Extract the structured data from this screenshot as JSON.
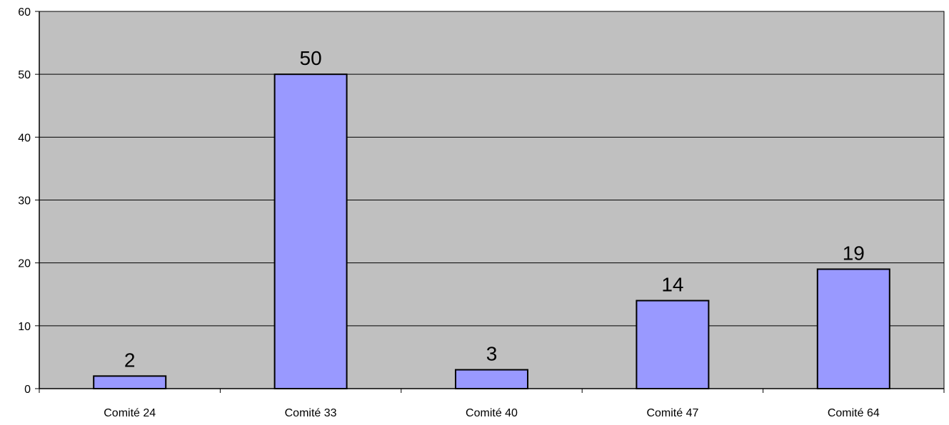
{
  "chart_data": {
    "type": "bar",
    "categories": [
      "Comité 24",
      "Comité 33",
      "Comité 40",
      "Comité 47",
      "Comité 64"
    ],
    "values": [
      2,
      50,
      3,
      14,
      19
    ],
    "data_labels": [
      "2",
      "50",
      "3",
      "14",
      "19"
    ],
    "title": "",
    "xlabel": "",
    "ylabel": "",
    "ylim": [
      0,
      60
    ],
    "yticks": [
      0,
      10,
      20,
      30,
      40,
      50,
      60
    ],
    "ytick_labels": [
      "0",
      "10",
      "20",
      "30",
      "40",
      "50",
      "60"
    ],
    "grid": true,
    "legend": "none",
    "colors": {
      "plot_background": "#c0c0c0",
      "bar_fill": "#9999ff",
      "bar_stroke": "#000000",
      "gridline": "#000000",
      "axis": "#000000"
    }
  }
}
